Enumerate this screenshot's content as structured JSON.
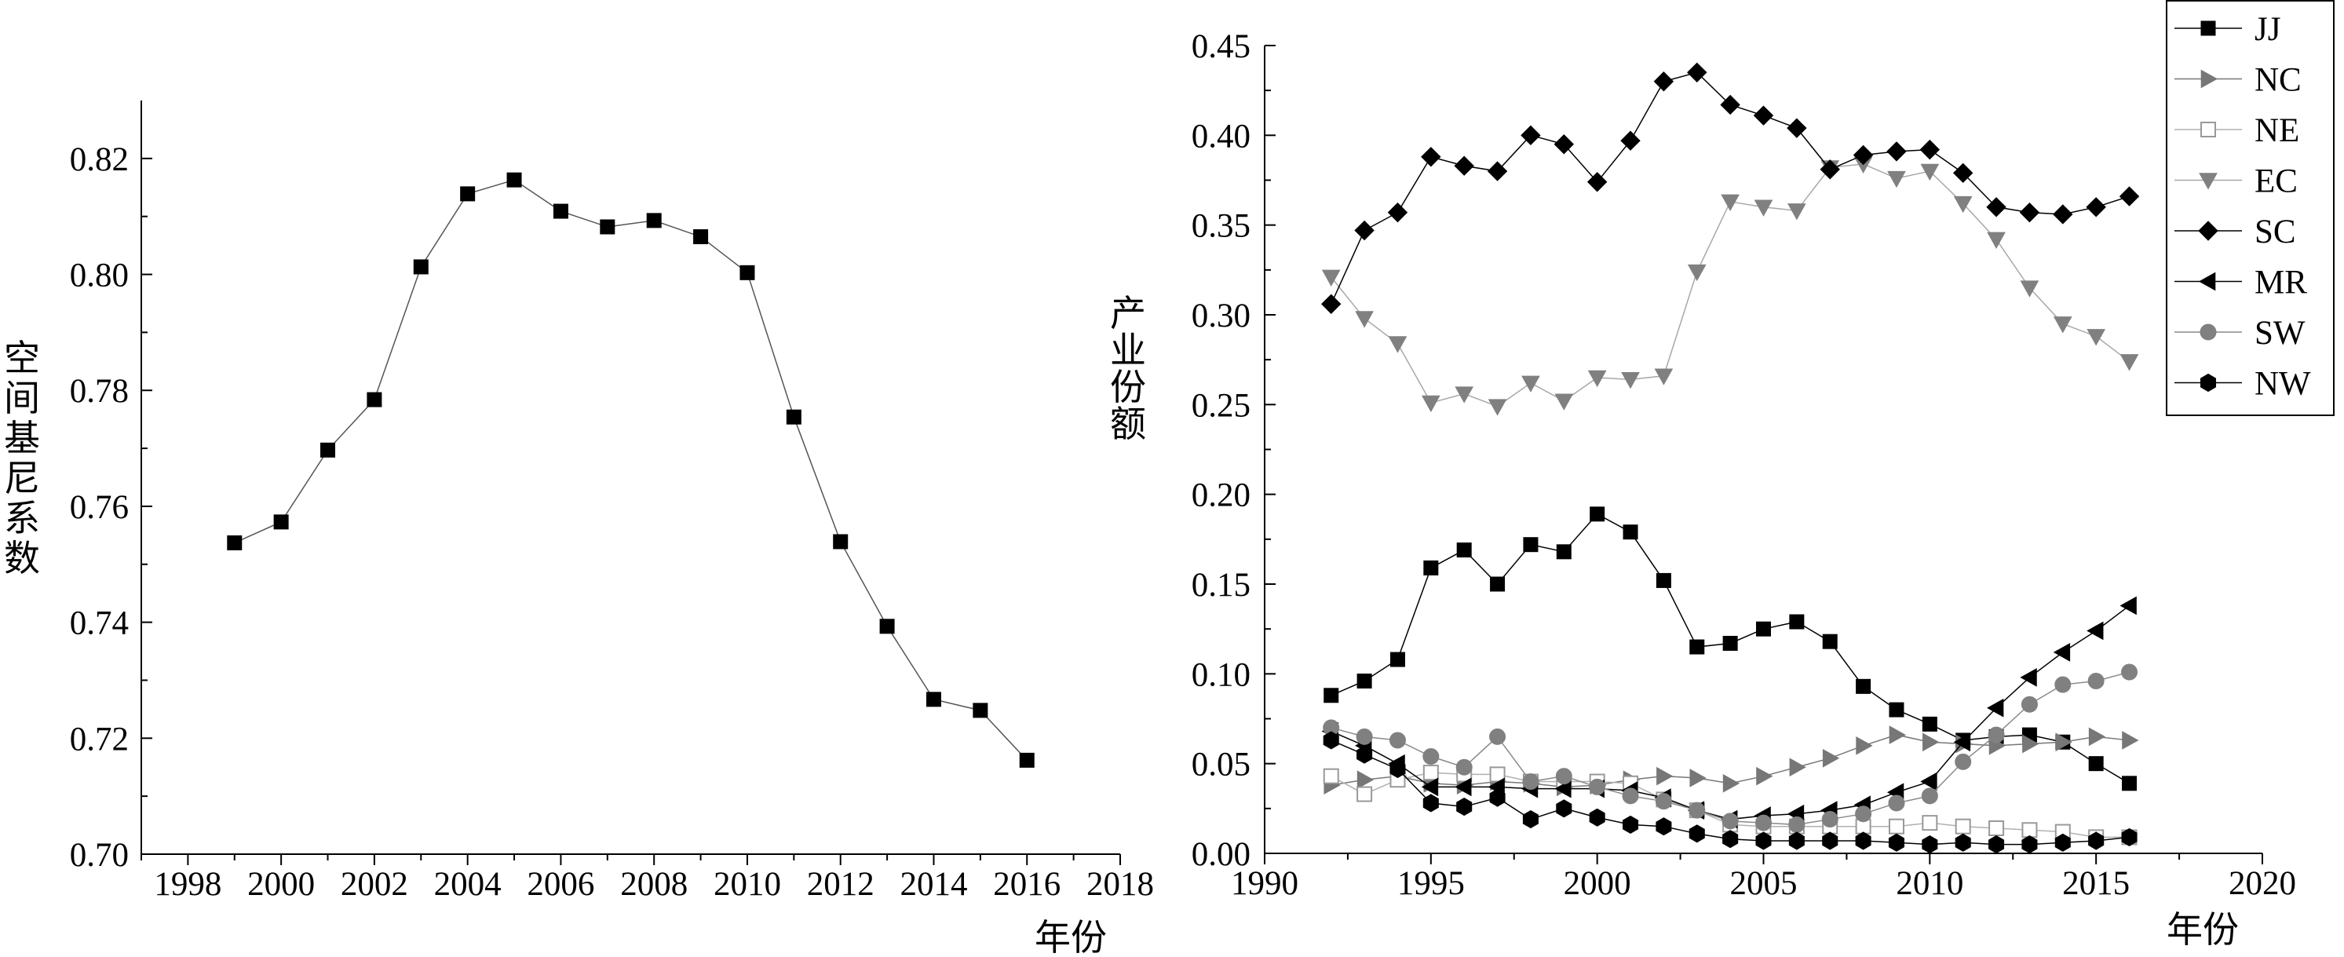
{
  "chart_data": [
    {
      "type": "line",
      "title": "",
      "xlabel": "年份",
      "ylabel": "空间基尼系数",
      "xlim": [
        1997,
        2018
      ],
      "ylim": [
        0.7,
        0.83
      ],
      "x_ticks": [
        1998,
        2000,
        2002,
        2004,
        2006,
        2008,
        2010,
        2012,
        2014,
        2016,
        2018
      ],
      "y_ticks": [
        "0.70",
        "0.72",
        "0.74",
        "0.76",
        "0.78",
        "0.80",
        "0.82"
      ],
      "grid": false,
      "series": [
        {
          "marker": "square",
          "color": "#000000",
          "x": [
            1999,
            2000,
            2001,
            2002,
            2003,
            2004,
            2005,
            2006,
            2007,
            2008,
            2009,
            2010,
            2011,
            2012,
            2013,
            2014,
            2015,
            2016
          ],
          "y": [
            0.7537,
            0.7573,
            0.7697,
            0.7784,
            0.8013,
            0.8139,
            0.8163,
            0.8109,
            0.8082,
            0.8093,
            0.8065,
            0.8003,
            0.7754,
            0.7539,
            0.7393,
            0.7267,
            0.7248,
            0.7162
          ]
        }
      ]
    },
    {
      "type": "line",
      "title": "",
      "xlabel": "年份",
      "ylabel": "产业份额",
      "xlim": [
        1990,
        2020
      ],
      "ylim": [
        0.0,
        0.45
      ],
      "x_ticks": [
        1990,
        1995,
        2000,
        2005,
        2010,
        2015,
        2020
      ],
      "y_ticks": [
        "0.00",
        "0.05",
        "0.10",
        "0.15",
        "0.20",
        "0.25",
        "0.30",
        "0.35",
        "0.40",
        "0.45"
      ],
      "grid": false,
      "legend_position": "top-right",
      "x": [
        1992,
        1993,
        1994,
        1995,
        1996,
        1997,
        1998,
        1999,
        2000,
        2001,
        2002,
        2003,
        2004,
        2005,
        2006,
        2007,
        2008,
        2009,
        2010,
        2011,
        2012,
        2013,
        2014,
        2015,
        2016
      ],
      "series": [
        {
          "name": "JJ",
          "marker": "square",
          "fill": "#000000",
          "stroke": "#000000",
          "line": "#000000",
          "values": [
            0.088,
            0.096,
            0.108,
            0.159,
            0.169,
            0.15,
            0.172,
            0.168,
            0.189,
            0.179,
            0.152,
            0.115,
            0.117,
            0.125,
            0.129,
            0.118,
            0.093,
            0.08,
            0.072,
            0.063,
            0.065,
            0.066,
            0.062,
            0.05,
            0.039
          ]
        },
        {
          "name": "NC",
          "marker": "triangle-right",
          "fill": "#777777",
          "stroke": "#777777",
          "line": "#777777",
          "values": [
            0.038,
            0.041,
            0.043,
            0.039,
            0.038,
            0.04,
            0.039,
            0.037,
            0.038,
            0.041,
            0.043,
            0.042,
            0.039,
            0.043,
            0.048,
            0.053,
            0.06,
            0.066,
            0.062,
            0.061,
            0.06,
            0.061,
            0.062,
            0.065,
            0.063
          ]
        },
        {
          "name": "NE",
          "marker": "square-open",
          "fill": "#ffffff",
          "stroke": "#999999",
          "line": "#b0b0b0",
          "values": [
            0.043,
            0.033,
            0.041,
            0.045,
            0.044,
            0.044,
            0.04,
            0.04,
            0.04,
            0.039,
            0.03,
            0.024,
            0.016,
            0.015,
            0.015,
            0.015,
            0.015,
            0.015,
            0.017,
            0.015,
            0.014,
            0.013,
            0.012,
            0.009,
            0.009
          ]
        },
        {
          "name": "EC",
          "marker": "triangle-down",
          "fill": "#808080",
          "stroke": "#808080",
          "line": "#a8a8a8",
          "values": [
            0.321,
            0.298,
            0.284,
            0.251,
            0.256,
            0.249,
            0.262,
            0.252,
            0.265,
            0.264,
            0.266,
            0.324,
            0.363,
            0.36,
            0.358,
            0.382,
            0.384,
            0.376,
            0.38,
            0.362,
            0.342,
            0.315,
            0.295,
            0.288,
            0.274
          ]
        },
        {
          "name": "SC",
          "marker": "diamond",
          "fill": "#000000",
          "stroke": "#000000",
          "line": "#000000",
          "values": [
            0.306,
            0.347,
            0.357,
            0.388,
            0.383,
            0.38,
            0.4,
            0.395,
            0.374,
            0.397,
            0.43,
            0.435,
            0.417,
            0.411,
            0.404,
            0.381,
            0.389,
            0.391,
            0.392,
            0.379,
            0.36,
            0.357,
            0.356,
            0.36,
            0.366
          ]
        },
        {
          "name": "MR",
          "marker": "triangle-left",
          "fill": "#000000",
          "stroke": "#000000",
          "line": "#000000",
          "values": [
            0.068,
            0.06,
            0.05,
            0.037,
            0.037,
            0.037,
            0.036,
            0.036,
            0.036,
            0.035,
            0.031,
            0.024,
            0.019,
            0.021,
            0.022,
            0.024,
            0.027,
            0.034,
            0.04,
            0.062,
            0.081,
            0.098,
            0.112,
            0.124,
            0.138
          ]
        },
        {
          "name": "SW",
          "marker": "circle",
          "fill": "#808080",
          "stroke": "#808080",
          "line": "#8a8a8a",
          "values": [
            0.07,
            0.065,
            0.063,
            0.054,
            0.048,
            0.065,
            0.04,
            0.043,
            0.037,
            0.032,
            0.029,
            0.024,
            0.018,
            0.017,
            0.016,
            0.019,
            0.022,
            0.028,
            0.032,
            0.051,
            0.066,
            0.083,
            0.094,
            0.096,
            0.101
          ]
        },
        {
          "name": "NW",
          "marker": "hexagon",
          "fill": "#000000",
          "stroke": "#000000",
          "line": "#000000",
          "values": [
            0.063,
            0.055,
            0.047,
            0.028,
            0.026,
            0.031,
            0.019,
            0.025,
            0.02,
            0.016,
            0.015,
            0.011,
            0.008,
            0.007,
            0.007,
            0.007,
            0.007,
            0.006,
            0.005,
            0.006,
            0.005,
            0.005,
            0.006,
            0.007,
            0.009
          ]
        }
      ]
    }
  ]
}
